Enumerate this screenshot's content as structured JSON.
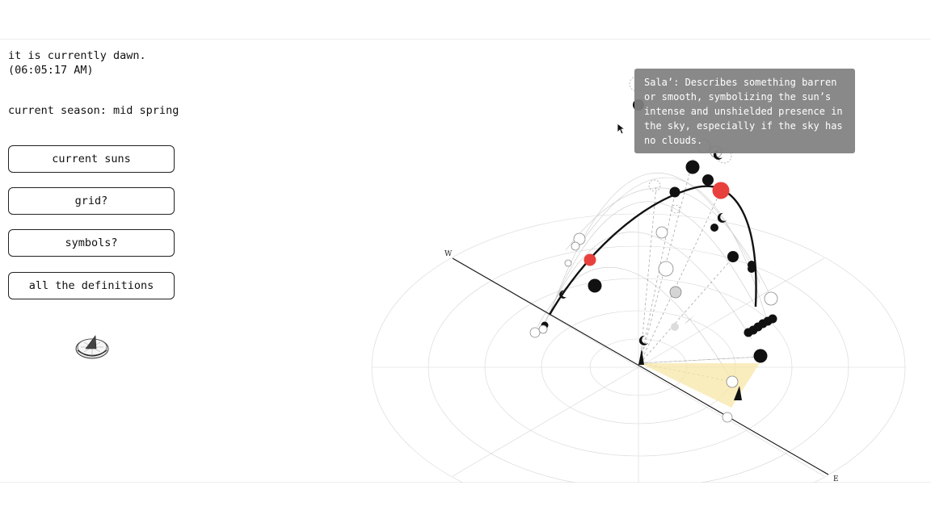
{
  "status": {
    "line1": "it is currently dawn.",
    "line2": "(06:05:17 AM)",
    "season": "current season: mid spring"
  },
  "buttons": [
    {
      "label": "current suns"
    },
    {
      "label": "grid?"
    },
    {
      "label": "symbols?"
    },
    {
      "label": "all the definitions"
    }
  ],
  "compass": {
    "west": "W",
    "east": "E"
  },
  "tooltip": {
    "text": "Sala’: Describes something barren or smooth, symbolizing the sun’s intense and unshielded presence in the sky, especially if the sky has no clouds."
  },
  "colors": {
    "accent_red": "#e8403d",
    "shadow_yellow": "#f7e7a8",
    "ink": "#111111",
    "tooltip_bg": "#808080"
  },
  "icons": {
    "sundial": "sundial-icon",
    "cursor": "arrow-cursor-icon",
    "pointer": "direction-arrow-icon"
  }
}
